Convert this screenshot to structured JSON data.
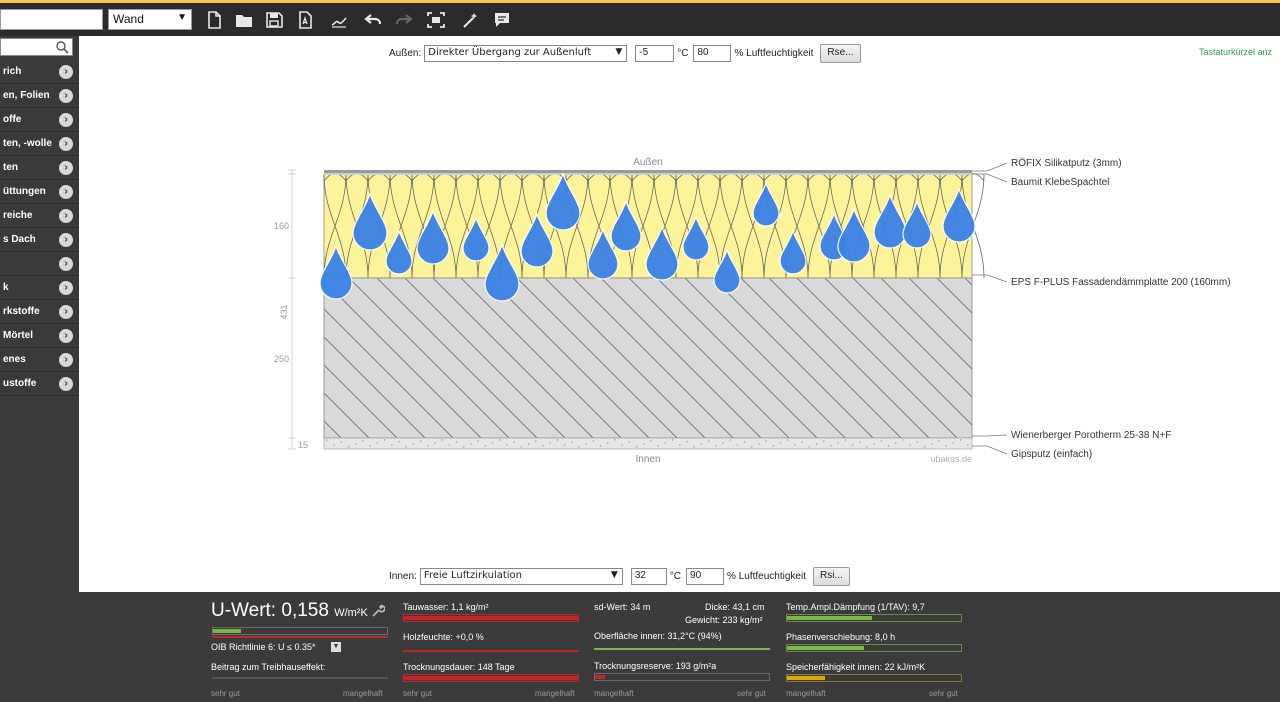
{
  "toolbar": {
    "search_value": "",
    "type_select": "Wand",
    "icons": [
      "new-file-icon",
      "open-folder-icon",
      "save-icon",
      "pdf-icon",
      "sign-icon",
      "undo-icon",
      "redo-icon",
      "fit-icon",
      "wizard-icon",
      "comment-icon"
    ]
  },
  "sidebar": {
    "items": [
      {
        "label": "rich"
      },
      {
        "label": "en, Folien"
      },
      {
        "label": "offe"
      },
      {
        "label": "ten, -wolle"
      },
      {
        "label": "ten"
      },
      {
        "label": "üttungen"
      },
      {
        "label": "reiche"
      },
      {
        "label": "s Dach"
      },
      {
        "label": ""
      },
      {
        "label": "k"
      },
      {
        "label": "rkstoffe"
      },
      {
        "label": "Mörtel"
      },
      {
        "label": "enes"
      },
      {
        "label": "ustoffe"
      }
    ]
  },
  "outer": {
    "label": "Außen:",
    "select": "Direkter Übergang zur Außenluft",
    "temp": "-5",
    "temp_unit": "°C",
    "humidity": "80",
    "humidity_unit": "% Luftfeuchtigkeit",
    "button": "Rse..."
  },
  "inner": {
    "label": "Innen:",
    "select": "Freie Luftzirkulation",
    "temp": "32",
    "temp_unit": "°C",
    "humidity": "90",
    "humidity_unit": "% Luftfeuchtigkeit",
    "button": "Rsi..."
  },
  "shortcut_text": "Tastaturkürzel anz",
  "diagram": {
    "top_label": "Außen",
    "bottom_label": "Innen",
    "watermark": "ubakus.de",
    "total_dim": "431",
    "dims": [
      "160",
      "250",
      "15"
    ],
    "layer_labels": [
      "RÖFIX Silikatputz (3mm)",
      "Baumit KlebeSpachtel",
      "EPS F-PLUS Fassadendämmplatte 200 (160mm)",
      "Wienerberger Porotherm 25-38 N+F",
      "Gipsputz (einfach)"
    ],
    "colors": {
      "insulation": "#fdf49a",
      "brick": "#d9d9d9",
      "drop": "#3b82e6"
    }
  },
  "results": {
    "uwert_label": "U-Wert:",
    "uwert_value": "0,158",
    "uwert_unit": "W/m²K",
    "oib": "OIB Richtlinie 6: U ≤ 0.35*",
    "treibhaus": "Beitrag zum Treibhauseffekt:",
    "scale1_left": "sehr gut",
    "scale1_right": "mangelhaft",
    "tauwasser": "Tauwasser: 1,1 kg/m²",
    "holzfeuchte": "Holzfeuchte: +0,0 %",
    "trocknungsdauer": "Trocknungsdauer: 148 Tage",
    "scale2_left": "sehr gut",
    "scale2_right": "mangelhaft",
    "sdwert": "sd-Wert: 34 m",
    "dicke": "Dicke: 43,1 cm",
    "gewicht": "Gewicht: 233 kg/m²",
    "oberflaeche": "Oberfläche innen: 31,2°C (94%)",
    "trocknungsreserve": "Trocknungsreserve: 193 g/m²a",
    "scale3_left": "mangelhaft",
    "scale3_right": "sehr gut",
    "temp_ampl": "Temp.Ampl.Dämpfung (1/TAV): 9,7",
    "phasen": "Phasenverschiebung: 8,0 h",
    "speicher": "Speicherfähigkeit innen: 22 kJ/m²K",
    "scale4_left": "mangelhaft",
    "scale4_right": "sehr gut"
  }
}
